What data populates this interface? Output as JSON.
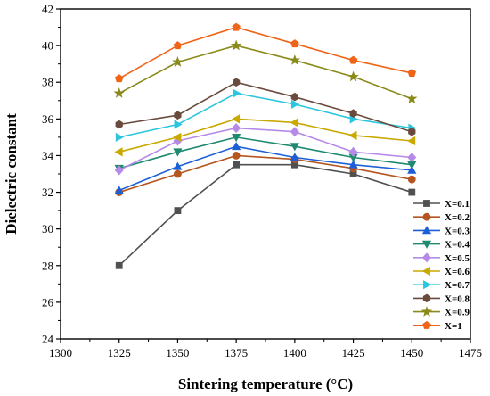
{
  "chart_data": {
    "type": "line",
    "title": "",
    "xlabel": "Sintering temperature (°C)",
    "ylabel": "Dielectric constant",
    "xlim": [
      1300,
      1475
    ],
    "ylim": [
      24,
      42
    ],
    "xticks": [
      1300,
      1325,
      1350,
      1375,
      1400,
      1425,
      1450,
      1475
    ],
    "yticks": [
      24,
      26,
      28,
      30,
      32,
      34,
      36,
      38,
      40,
      42
    ],
    "grid": false,
    "legend_position": "bottom-right",
    "x": [
      1325,
      1350,
      1375,
      1400,
      1425,
      1450
    ],
    "series": [
      {
        "name": "X=0.1",
        "color": "#505050",
        "marker": "square",
        "values": [
          28.0,
          31.0,
          33.5,
          33.5,
          33.0,
          32.0
        ]
      },
      {
        "name": "X=0.2",
        "color": "#b5551f",
        "marker": "circle",
        "values": [
          32.0,
          33.0,
          34.0,
          33.8,
          33.3,
          32.7
        ]
      },
      {
        "name": "X=0.3",
        "color": "#1d5fd6",
        "marker": "triangle-up",
        "values": [
          32.1,
          33.4,
          34.5,
          33.9,
          33.5,
          33.2
        ]
      },
      {
        "name": "X=0.4",
        "color": "#1f8a70",
        "marker": "triangle-down",
        "values": [
          33.3,
          34.2,
          35.0,
          34.5,
          33.9,
          33.5
        ]
      },
      {
        "name": "X=0.5",
        "color": "#b68ae8",
        "marker": "diamond",
        "values": [
          33.2,
          34.8,
          35.5,
          35.3,
          34.2,
          33.9
        ]
      },
      {
        "name": "X=0.6",
        "color": "#c9a800",
        "marker": "triangle-left",
        "values": [
          34.2,
          35.0,
          36.0,
          35.8,
          35.1,
          34.8
        ]
      },
      {
        "name": "X=0.7",
        "color": "#2bc6de",
        "marker": "triangle-right",
        "values": [
          35.0,
          35.7,
          37.4,
          36.8,
          36.0,
          35.5
        ]
      },
      {
        "name": "X=0.8",
        "color": "#6b4a3e",
        "marker": "hexagon",
        "values": [
          35.7,
          36.2,
          38.0,
          37.2,
          36.3,
          35.3
        ]
      },
      {
        "name": "X=0.9",
        "color": "#8a8a1a",
        "marker": "star",
        "values": [
          37.4,
          39.1,
          40.0,
          39.2,
          38.3,
          37.1
        ]
      },
      {
        "name": "X=1",
        "color": "#f06418",
        "marker": "pentagon",
        "values": [
          38.2,
          40.0,
          41.0,
          40.1,
          39.2,
          38.5
        ]
      }
    ],
    "legend_note_color_x02": "#d84f50",
    "legend_note_color_x1": "#e8372a"
  }
}
